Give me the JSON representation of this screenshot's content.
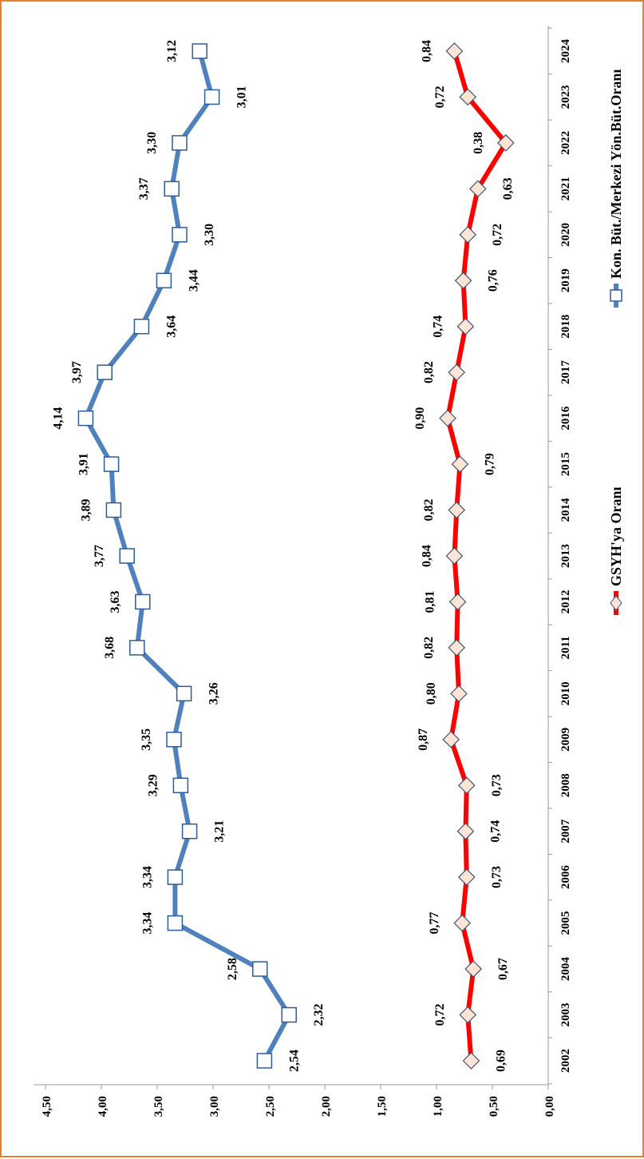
{
  "chart_data": {
    "type": "line",
    "orientation": "rotated-90-clockwise",
    "x": [
      "2002",
      "2003",
      "2004",
      "2005",
      "2006",
      "2007",
      "2008",
      "2009",
      "2010",
      "2011",
      "2012",
      "2013",
      "2014",
      "2015",
      "2016",
      "2017",
      "2018",
      "2019",
      "2020",
      "2021",
      "2022",
      "2023",
      "2024"
    ],
    "ylim": [
      0,
      4.5
    ],
    "yticks": [
      "0,00",
      "0,50",
      "1,00",
      "1,50",
      "2,00",
      "2,50",
      "3,00",
      "3,50",
      "4,00",
      "4,50"
    ],
    "ytick_values": [
      0,
      0.5,
      1,
      1.5,
      2,
      2.5,
      3,
      3.5,
      4,
      4.5
    ],
    "grid": false,
    "legend_position": "bottom",
    "series": [
      {
        "name": "GSYH'ya Oranı",
        "color": "#FF0000",
        "marker": "diamond",
        "marker_fill": "#FCE4D6",
        "marker_stroke": "#44546A",
        "values": [
          0.69,
          0.72,
          0.67,
          0.77,
          0.73,
          0.74,
          0.73,
          0.87,
          0.8,
          0.82,
          0.81,
          0.84,
          0.82,
          0.79,
          0.9,
          0.82,
          0.74,
          0.76,
          0.72,
          0.63,
          0.38,
          0.72,
          0.84
        ],
        "labels": [
          "0,69",
          "0,72",
          "0,67",
          "0,77",
          "0,73",
          "0,74",
          "0,73",
          "0,87",
          "0,80",
          "0,82",
          "0,81",
          "0,84",
          "0,82",
          "0,79",
          "0,90",
          "0,82",
          "0,74",
          "0,76",
          "0,72",
          "0,63",
          "0,38",
          "0,72",
          "0,84"
        ],
        "label_side": [
          "below",
          "above",
          "below",
          "above",
          "below",
          "below",
          "below",
          "above",
          "above",
          "above",
          "above",
          "above",
          "above",
          "below",
          "above",
          "above",
          "above",
          "below",
          "below",
          "below",
          "above",
          "above",
          "above"
        ]
      },
      {
        "name": "Kon. Büt./Merkezi Yön.Büt.Oranı",
        "color": "#4F81BD",
        "marker": "square",
        "marker_fill": "#FFFFFF",
        "marker_stroke": "#2E5C9A",
        "values": [
          2.54,
          2.32,
          2.58,
          3.34,
          3.34,
          3.21,
          3.29,
          3.35,
          3.26,
          3.68,
          3.63,
          3.77,
          3.89,
          3.91,
          4.14,
          3.97,
          3.64,
          3.44,
          3.3,
          3.37,
          3.3,
          3.01,
          3.12
        ],
        "labels": [
          "2,54",
          "2,32",
          "2,58",
          "3,34",
          "3,34",
          "3,21",
          "3,29",
          "3,35",
          "3,26",
          "3,68",
          "3,63",
          "3,77",
          "3,89",
          "3,91",
          "4,14",
          "3,97",
          "3,64",
          "3,44",
          "3,30",
          "3,37",
          "3,30",
          "3,01",
          "3,12"
        ],
        "label_side": [
          "below",
          "below",
          "above",
          "above",
          "above",
          "below",
          "above",
          "above",
          "below",
          "above",
          "above",
          "above",
          "above",
          "above",
          "above",
          "above",
          "below",
          "below",
          "below",
          "above",
          "above",
          "below",
          "above"
        ]
      }
    ]
  }
}
